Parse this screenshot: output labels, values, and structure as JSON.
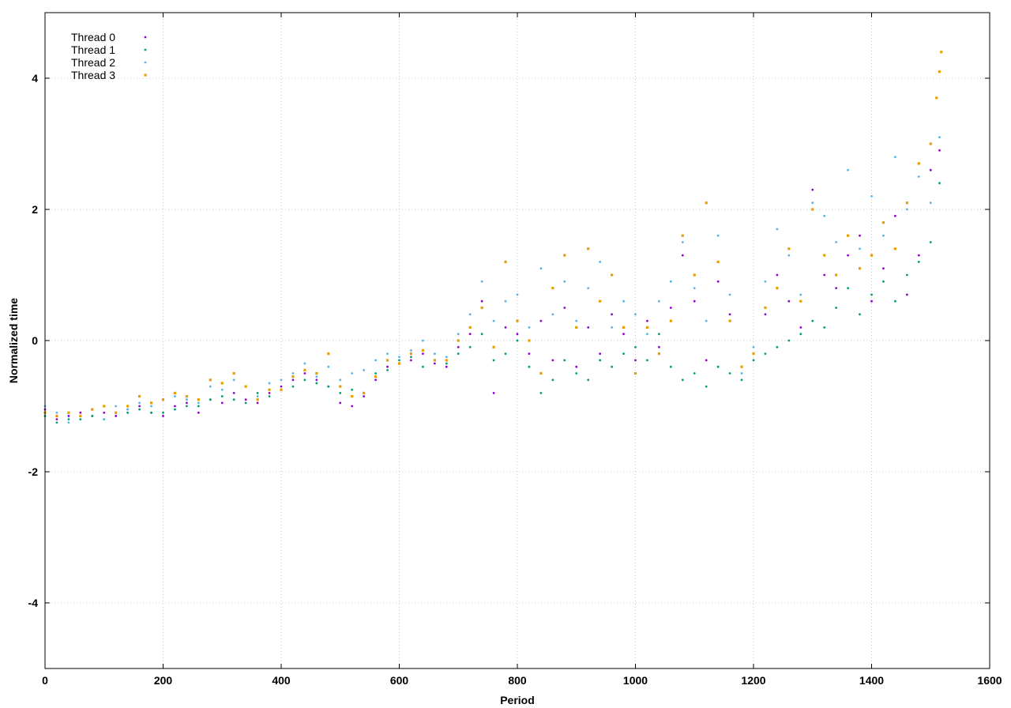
{
  "chart_data": {
    "type": "scatter",
    "title": "",
    "xlabel": "Period",
    "ylabel": "Normalized time",
    "xlim": [
      0,
      1600
    ],
    "ylim": [
      -5,
      5
    ],
    "xticks": [
      0,
      200,
      400,
      600,
      800,
      1000,
      1200,
      1400,
      1600
    ],
    "xtick_labels": [
      "0",
      "200",
      "400",
      "600",
      "800",
      "1000",
      "1200",
      "1400",
      "1600"
    ],
    "yticks": [
      -4,
      -2,
      0,
      2,
      4
    ],
    "ytick_labels": [
      "-4",
      "-2",
      "0",
      "2",
      "4"
    ],
    "grid": true,
    "legend_position": "top-left",
    "series": [
      {
        "name": "Thread 0",
        "color": "#9400d3",
        "marker": "dot",
        "points": [
          [
            0,
            -1.05
          ],
          [
            20,
            -1.2
          ],
          [
            40,
            -1.15
          ],
          [
            60,
            -1.1
          ],
          [
            80,
            -1.15
          ],
          [
            100,
            -1.1
          ],
          [
            120,
            -1.15
          ],
          [
            140,
            -1.05
          ],
          [
            160,
            -1.0
          ],
          [
            180,
            -1.1
          ],
          [
            200,
            -1.15
          ],
          [
            220,
            -1.0
          ],
          [
            240,
            -0.95
          ],
          [
            260,
            -1.1
          ],
          [
            280,
            -0.9
          ],
          [
            300,
            -0.95
          ],
          [
            320,
            -0.8
          ],
          [
            340,
            -0.9
          ],
          [
            360,
            -0.95
          ],
          [
            380,
            -0.8
          ],
          [
            400,
            -0.7
          ],
          [
            420,
            -0.6
          ],
          [
            440,
            -0.5
          ],
          [
            460,
            -0.6
          ],
          [
            480,
            -0.7
          ],
          [
            500,
            -0.95
          ],
          [
            520,
            -1.0
          ],
          [
            540,
            -0.85
          ],
          [
            560,
            -0.6
          ],
          [
            580,
            -0.4
          ],
          [
            600,
            -0.35
          ],
          [
            620,
            -0.3
          ],
          [
            640,
            -0.2
          ],
          [
            660,
            -0.35
          ],
          [
            680,
            -0.4
          ],
          [
            700,
            -0.1
          ],
          [
            720,
            0.1
          ],
          [
            740,
            0.6
          ],
          [
            760,
            -0.8
          ],
          [
            780,
            0.2
          ],
          [
            800,
            0.1
          ],
          [
            820,
            -0.2
          ],
          [
            840,
            0.3
          ],
          [
            860,
            -0.3
          ],
          [
            880,
            0.5
          ],
          [
            900,
            -0.4
          ],
          [
            920,
            0.2
          ],
          [
            940,
            -0.2
          ],
          [
            960,
            0.4
          ],
          [
            980,
            0.1
          ],
          [
            1000,
            -0.3
          ],
          [
            1020,
            0.3
          ],
          [
            1040,
            -0.1
          ],
          [
            1060,
            0.5
          ],
          [
            1080,
            1.3
          ],
          [
            1100,
            0.6
          ],
          [
            1120,
            -0.3
          ],
          [
            1140,
            0.9
          ],
          [
            1160,
            0.4
          ],
          [
            1180,
            -0.4
          ],
          [
            1200,
            -0.2
          ],
          [
            1220,
            0.4
          ],
          [
            1240,
            1.0
          ],
          [
            1260,
            0.6
          ],
          [
            1280,
            0.2
          ],
          [
            1300,
            2.3
          ],
          [
            1320,
            1.0
          ],
          [
            1340,
            0.8
          ],
          [
            1360,
            1.3
          ],
          [
            1380,
            1.6
          ],
          [
            1400,
            0.6
          ],
          [
            1420,
            1.1
          ],
          [
            1440,
            1.9
          ],
          [
            1460,
            0.7
          ],
          [
            1480,
            1.3
          ],
          [
            1500,
            2.6
          ],
          [
            1515,
            2.9
          ]
        ]
      },
      {
        "name": "Thread 1",
        "color": "#009e73",
        "marker": "dot",
        "points": [
          [
            0,
            -1.15
          ],
          [
            20,
            -1.25
          ],
          [
            40,
            -1.2
          ],
          [
            60,
            -1.2
          ],
          [
            80,
            -1.15
          ],
          [
            100,
            -1.2
          ],
          [
            120,
            -1.1
          ],
          [
            140,
            -1.1
          ],
          [
            160,
            -1.05
          ],
          [
            180,
            -1.1
          ],
          [
            200,
            -1.1
          ],
          [
            220,
            -1.05
          ],
          [
            240,
            -1.0
          ],
          [
            260,
            -1.0
          ],
          [
            280,
            -0.9
          ],
          [
            300,
            -0.85
          ],
          [
            320,
            -0.9
          ],
          [
            340,
            -0.95
          ],
          [
            360,
            -0.8
          ],
          [
            380,
            -0.85
          ],
          [
            400,
            -0.75
          ],
          [
            420,
            -0.7
          ],
          [
            440,
            -0.6
          ],
          [
            460,
            -0.65
          ],
          [
            480,
            -0.7
          ],
          [
            500,
            -0.8
          ],
          [
            520,
            -0.75
          ],
          [
            540,
            -0.8
          ],
          [
            560,
            -0.5
          ],
          [
            580,
            -0.45
          ],
          [
            600,
            -0.3
          ],
          [
            620,
            -0.25
          ],
          [
            640,
            -0.4
          ],
          [
            660,
            -0.3
          ],
          [
            680,
            -0.35
          ],
          [
            700,
            -0.2
          ],
          [
            720,
            -0.1
          ],
          [
            740,
            0.1
          ],
          [
            760,
            -0.3
          ],
          [
            780,
            -0.2
          ],
          [
            800,
            0.0
          ],
          [
            820,
            -0.4
          ],
          [
            840,
            -0.8
          ],
          [
            860,
            -0.6
          ],
          [
            880,
            -0.3
          ],
          [
            900,
            -0.5
          ],
          [
            920,
            -0.6
          ],
          [
            940,
            -0.3
          ],
          [
            960,
            -0.4
          ],
          [
            980,
            -0.2
          ],
          [
            1000,
            -0.1
          ],
          [
            1020,
            -0.3
          ],
          [
            1040,
            0.1
          ],
          [
            1060,
            -0.4
          ],
          [
            1080,
            -0.6
          ],
          [
            1100,
            -0.5
          ],
          [
            1120,
            -0.7
          ],
          [
            1140,
            -0.4
          ],
          [
            1160,
            -0.5
          ],
          [
            1180,
            -0.6
          ],
          [
            1200,
            -0.3
          ],
          [
            1220,
            -0.2
          ],
          [
            1240,
            -0.1
          ],
          [
            1260,
            0.0
          ],
          [
            1280,
            0.1
          ],
          [
            1300,
            0.3
          ],
          [
            1320,
            0.2
          ],
          [
            1340,
            0.5
          ],
          [
            1360,
            0.8
          ],
          [
            1380,
            0.4
          ],
          [
            1400,
            0.7
          ],
          [
            1420,
            0.9
          ],
          [
            1440,
            0.6
          ],
          [
            1460,
            1.0
          ],
          [
            1480,
            1.2
          ],
          [
            1500,
            1.5
          ],
          [
            1515,
            2.4
          ]
        ]
      },
      {
        "name": "Thread 2",
        "color": "#56b4e9",
        "marker": "dot",
        "points": [
          [
            0,
            -1.0
          ],
          [
            20,
            -1.1
          ],
          [
            40,
            -1.25
          ],
          [
            60,
            -1.15
          ],
          [
            80,
            -1.05
          ],
          [
            100,
            -1.2
          ],
          [
            120,
            -1.0
          ],
          [
            140,
            -1.05
          ],
          [
            160,
            -0.95
          ],
          [
            180,
            -1.0
          ],
          [
            200,
            -0.9
          ],
          [
            220,
            -0.85
          ],
          [
            240,
            -0.9
          ],
          [
            260,
            -0.95
          ],
          [
            280,
            -0.7
          ],
          [
            300,
            -0.75
          ],
          [
            320,
            -0.6
          ],
          [
            340,
            -0.7
          ],
          [
            360,
            -0.85
          ],
          [
            380,
            -0.65
          ],
          [
            400,
            -0.6
          ],
          [
            420,
            -0.5
          ],
          [
            440,
            -0.35
          ],
          [
            460,
            -0.55
          ],
          [
            480,
            -0.4
          ],
          [
            500,
            -0.6
          ],
          [
            520,
            -0.5
          ],
          [
            540,
            -0.45
          ],
          [
            560,
            -0.3
          ],
          [
            580,
            -0.2
          ],
          [
            600,
            -0.25
          ],
          [
            620,
            -0.15
          ],
          [
            640,
            0.0
          ],
          [
            660,
            -0.2
          ],
          [
            680,
            -0.25
          ],
          [
            700,
            0.1
          ],
          [
            720,
            0.4
          ],
          [
            740,
            0.9
          ],
          [
            760,
            0.3
          ],
          [
            780,
            0.6
          ],
          [
            800,
            0.7
          ],
          [
            820,
            0.2
          ],
          [
            840,
            1.1
          ],
          [
            860,
            0.4
          ],
          [
            880,
            0.9
          ],
          [
            900,
            0.3
          ],
          [
            920,
            0.8
          ],
          [
            940,
            1.2
          ],
          [
            960,
            0.2
          ],
          [
            980,
            0.6
          ],
          [
            1000,
            0.4
          ],
          [
            1020,
            0.1
          ],
          [
            1040,
            0.6
          ],
          [
            1060,
            0.9
          ],
          [
            1080,
            1.5
          ],
          [
            1100,
            0.8
          ],
          [
            1120,
            0.3
          ],
          [
            1140,
            1.6
          ],
          [
            1160,
            0.7
          ],
          [
            1180,
            -0.5
          ],
          [
            1200,
            -0.1
          ],
          [
            1220,
            0.9
          ],
          [
            1240,
            1.7
          ],
          [
            1260,
            1.3
          ],
          [
            1280,
            0.7
          ],
          [
            1300,
            2.1
          ],
          [
            1320,
            1.9
          ],
          [
            1340,
            1.5
          ],
          [
            1360,
            2.6
          ],
          [
            1380,
            1.4
          ],
          [
            1400,
            2.2
          ],
          [
            1420,
            1.6
          ],
          [
            1440,
            2.8
          ],
          [
            1460,
            2.0
          ],
          [
            1480,
            2.5
          ],
          [
            1500,
            2.1
          ],
          [
            1515,
            3.1
          ]
        ]
      },
      {
        "name": "Thread 3",
        "color": "#e69f00",
        "marker": "square",
        "points": [
          [
            0,
            -1.1
          ],
          [
            20,
            -1.15
          ],
          [
            40,
            -1.1
          ],
          [
            60,
            -1.15
          ],
          [
            80,
            -1.05
          ],
          [
            100,
            -1.0
          ],
          [
            120,
            -1.1
          ],
          [
            140,
            -1.0
          ],
          [
            160,
            -0.85
          ],
          [
            180,
            -0.95
          ],
          [
            200,
            -0.9
          ],
          [
            220,
            -0.8
          ],
          [
            240,
            -0.85
          ],
          [
            260,
            -0.9
          ],
          [
            280,
            -0.6
          ],
          [
            300,
            -0.65
          ],
          [
            320,
            -0.5
          ],
          [
            340,
            -0.7
          ],
          [
            360,
            -0.9
          ],
          [
            380,
            -0.75
          ],
          [
            400,
            -0.75
          ],
          [
            420,
            -0.55
          ],
          [
            440,
            -0.45
          ],
          [
            460,
            -0.5
          ],
          [
            480,
            -0.2
          ],
          [
            500,
            -0.7
          ],
          [
            520,
            -0.85
          ],
          [
            540,
            -0.8
          ],
          [
            560,
            -0.55
          ],
          [
            580,
            -0.3
          ],
          [
            600,
            -0.35
          ],
          [
            620,
            -0.2
          ],
          [
            640,
            -0.15
          ],
          [
            660,
            -0.3
          ],
          [
            680,
            -0.3
          ],
          [
            700,
            0.0
          ],
          [
            720,
            0.2
          ],
          [
            740,
            0.5
          ],
          [
            760,
            -0.1
          ],
          [
            780,
            1.2
          ],
          [
            800,
            0.3
          ],
          [
            820,
            0.0
          ],
          [
            840,
            -0.5
          ],
          [
            860,
            0.8
          ],
          [
            880,
            1.3
          ],
          [
            900,
            0.2
          ],
          [
            920,
            1.4
          ],
          [
            940,
            0.6
          ],
          [
            960,
            1.0
          ],
          [
            980,
            0.2
          ],
          [
            1000,
            -0.5
          ],
          [
            1020,
            0.2
          ],
          [
            1040,
            -0.2
          ],
          [
            1060,
            0.3
          ],
          [
            1080,
            1.6
          ],
          [
            1100,
            1.0
          ],
          [
            1120,
            2.1
          ],
          [
            1140,
            1.2
          ],
          [
            1160,
            0.3
          ],
          [
            1180,
            -0.4
          ],
          [
            1200,
            -0.2
          ],
          [
            1220,
            0.5
          ],
          [
            1240,
            0.8
          ],
          [
            1260,
            1.4
          ],
          [
            1280,
            0.6
          ],
          [
            1300,
            2.0
          ],
          [
            1320,
            1.3
          ],
          [
            1340,
            1.0
          ],
          [
            1360,
            1.6
          ],
          [
            1380,
            1.1
          ],
          [
            1400,
            1.3
          ],
          [
            1420,
            1.8
          ],
          [
            1440,
            1.4
          ],
          [
            1460,
            2.1
          ],
          [
            1480,
            2.7
          ],
          [
            1500,
            3.0
          ],
          [
            1510,
            3.7
          ],
          [
            1515,
            4.1
          ],
          [
            1518,
            4.4
          ]
        ]
      }
    ]
  }
}
